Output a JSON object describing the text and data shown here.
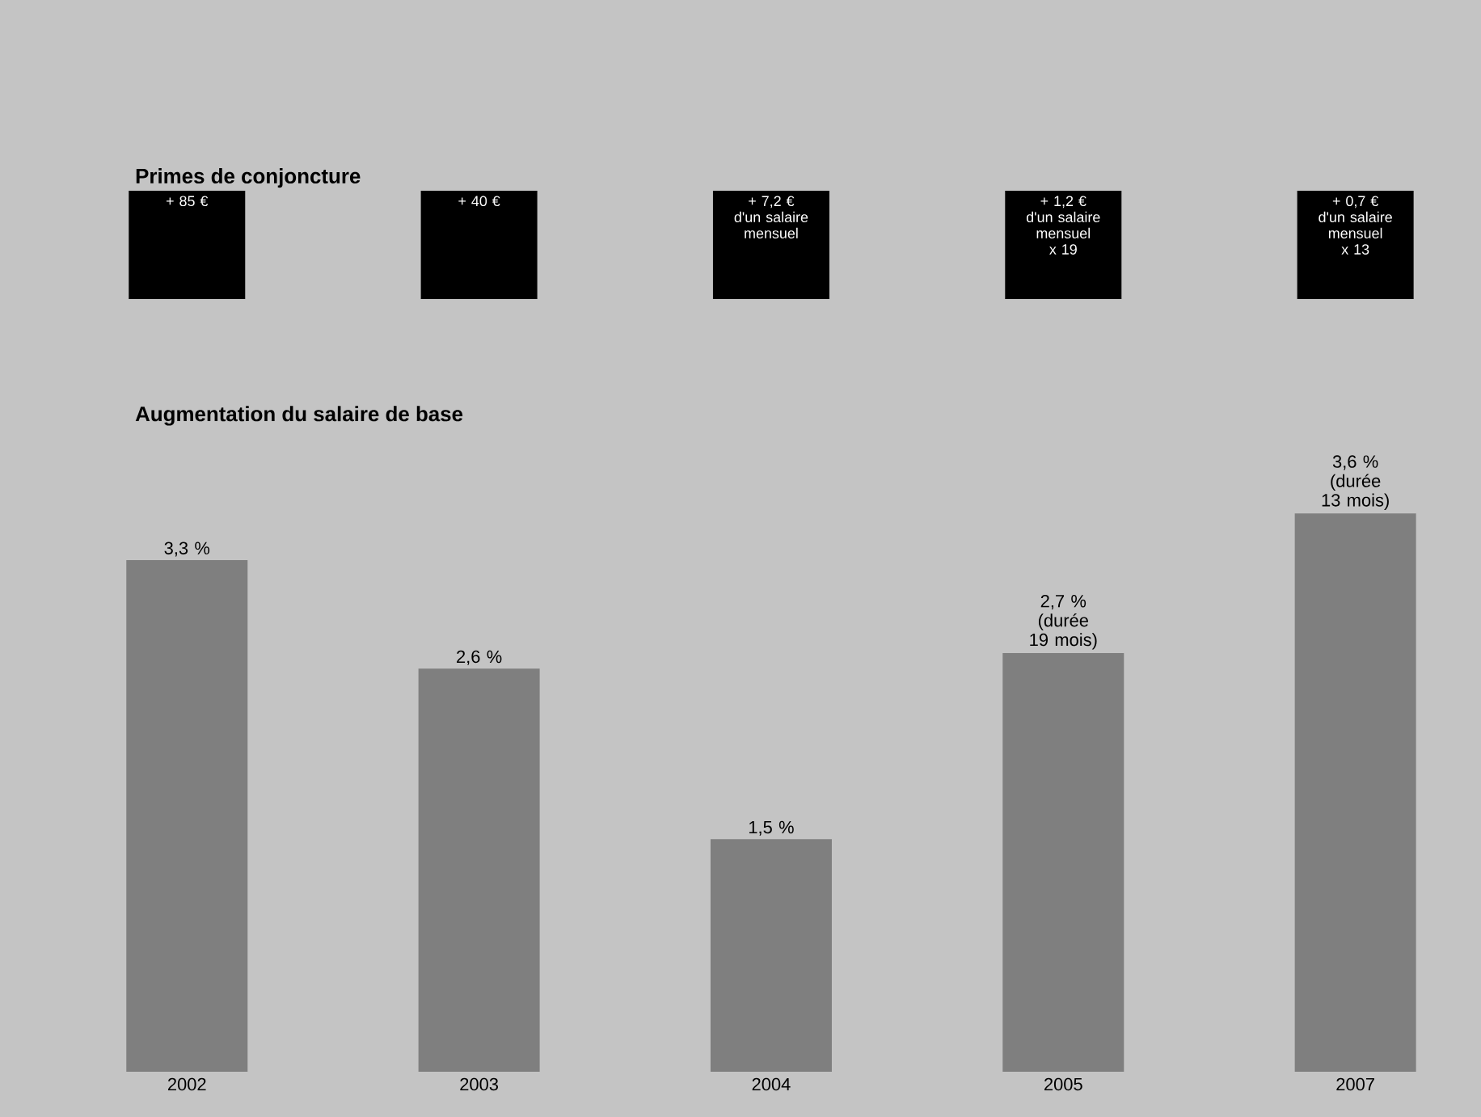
{
  "chart_data": {
    "type": "bar",
    "title": "Augmentation du salaire de base",
    "categories": [
      "2002",
      "2003",
      "2004",
      "2005",
      "2007"
    ],
    "values": [
      3.3,
      2.6,
      1.5,
      2.7,
      3.6
    ],
    "color": "#7f7f7f",
    "value_labels": [
      "3,3 %",
      "2,6 %",
      "1,5 %",
      "2,7 % (durée 19 mois)",
      "3,6 % (durée 13 mois)"
    ],
    "annotations": [
      "Primes de conjoncture",
      "+ 85 €",
      "+ 40 €",
      "+ 7,2 € d'un salaire mensuel",
      "+ 1,2 € d'un salaire mensuel x 19",
      "+ 0,7 € d'un salaire mensuel x 13"
    ],
    "marker": "none"
  }
}
